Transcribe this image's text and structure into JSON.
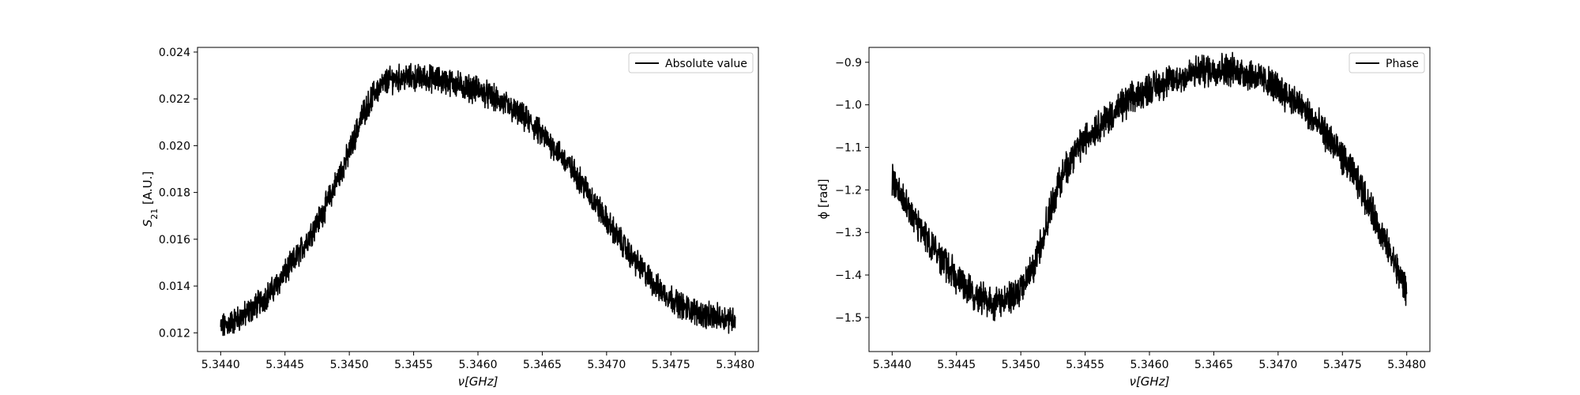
{
  "chart_data": [
    {
      "type": "line",
      "legend_placement": "top-right",
      "grid": false,
      "xlabel": "ν[GHz]",
      "ylabel": "S21 [A.U.]",
      "ylabel_main": "S",
      "ylabel_sub": "21",
      "ylabel_rest": " [A.U.]",
      "xlim": [
        5.34382,
        5.34818
      ],
      "ylim": [
        0.0112,
        0.0242
      ],
      "xticks": [
        5.344,
        5.3445,
        5.345,
        5.3455,
        5.346,
        5.3465,
        5.347,
        5.3475,
        5.348
      ],
      "xtick_labels": [
        "5.3440",
        "5.3445",
        "5.3450",
        "5.3455",
        "5.3460",
        "5.3465",
        "5.3470",
        "5.3475",
        "5.3480"
      ],
      "yticks": [
        0.012,
        0.014,
        0.016,
        0.018,
        0.02,
        0.022,
        0.024
      ],
      "ytick_labels": [
        "0.012",
        "0.014",
        "0.016",
        "0.018",
        "0.020",
        "0.022",
        "0.024"
      ],
      "series": [
        {
          "name": "Absolute value",
          "color": "#000000",
          "noise": 0.00045,
          "x": [
            5.344,
            5.3442,
            5.3444,
            5.3446,
            5.3448,
            5.345,
            5.3451,
            5.3452,
            5.3453,
            5.3454,
            5.3455,
            5.3456,
            5.3457,
            5.3458,
            5.3459,
            5.346,
            5.3462,
            5.3464,
            5.3466,
            5.3468,
            5.347,
            5.3472,
            5.3474,
            5.3476,
            5.3478,
            5.348
          ],
          "y": [
            0.0122,
            0.0128,
            0.0138,
            0.0153,
            0.0172,
            0.0197,
            0.0213,
            0.0223,
            0.0228,
            0.0229,
            0.0229,
            0.0229,
            0.0228,
            0.0227,
            0.0225,
            0.0224,
            0.0218,
            0.021,
            0.0199,
            0.0185,
            0.0168,
            0.0152,
            0.0139,
            0.0131,
            0.0127,
            0.0126
          ]
        }
      ]
    },
    {
      "type": "line",
      "legend_placement": "top-right",
      "grid": false,
      "xlabel": "ν[GHz]",
      "ylabel": "ϕ [rad]",
      "xlim": [
        5.34382,
        5.34818
      ],
      "ylim": [
        -1.58,
        -0.865
      ],
      "xticks": [
        5.344,
        5.3445,
        5.345,
        5.3455,
        5.346,
        5.3465,
        5.347,
        5.3475,
        5.348
      ],
      "xtick_labels": [
        "5.3440",
        "5.3445",
        "5.3450",
        "5.3455",
        "5.3460",
        "5.3465",
        "5.3470",
        "5.3475",
        "5.3480"
      ],
      "yticks": [
        -1.5,
        -1.4,
        -1.3,
        -1.2,
        -1.1,
        -1.0,
        -0.9
      ],
      "ytick_labels": [
        "−1.5",
        "−1.4",
        "−1.3",
        "−1.2",
        "−1.1",
        "−1.0",
        "−0.9"
      ],
      "series": [
        {
          "name": "Phase",
          "color": "#000000",
          "noise": 0.03,
          "x": [
            5.344,
            5.3442,
            5.3444,
            5.3446,
            5.3448,
            5.345,
            5.3451,
            5.3452,
            5.3453,
            5.3454,
            5.3455,
            5.3456,
            5.3458,
            5.346,
            5.3462,
            5.3464,
            5.3466,
            5.3468,
            5.347,
            5.3472,
            5.3474,
            5.3476,
            5.3477,
            5.3478,
            5.3479,
            5.348
          ],
          "y": [
            -1.18,
            -1.28,
            -1.37,
            -1.44,
            -1.47,
            -1.44,
            -1.38,
            -1.28,
            -1.18,
            -1.12,
            -1.08,
            -1.05,
            -1.0,
            -0.96,
            -0.94,
            -0.92,
            -0.915,
            -0.93,
            -0.96,
            -1.01,
            -1.08,
            -1.17,
            -1.23,
            -1.3,
            -1.37,
            -1.44
          ]
        }
      ]
    }
  ]
}
